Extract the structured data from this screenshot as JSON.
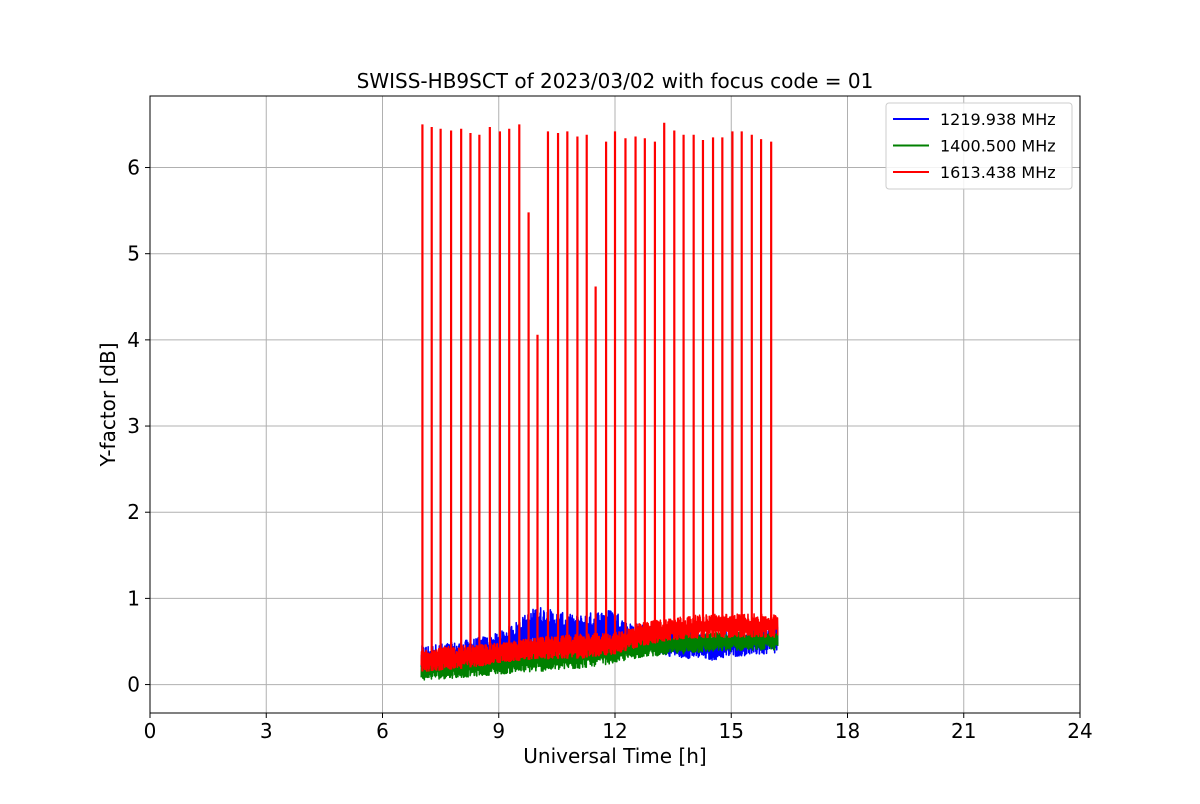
{
  "chart_data": {
    "type": "line",
    "title": "SWISS-HB9SCT of 2023/03/02 with focus code = 01",
    "xlabel": "Universal Time [h]",
    "ylabel": "Y-factor [dB]",
    "xlim": [
      0,
      24
    ],
    "ylim": [
      -0.33,
      6.83
    ],
    "xticks": [
      0,
      3,
      6,
      9,
      12,
      15,
      18,
      21,
      24
    ],
    "yticks": [
      0,
      1,
      2,
      3,
      4,
      5,
      6
    ],
    "grid": true,
    "legend_position": "upper right",
    "series": [
      {
        "name": "1219.938 MHz",
        "color": "#0000ff",
        "kind": "noisy-band",
        "x": [
          7.0,
          8.0,
          9.0,
          9.5,
          10.0,
          10.5,
          11.0,
          11.5,
          12.0,
          12.3,
          12.7,
          13.5,
          14.0,
          14.5,
          15.0,
          15.5,
          16.2
        ],
        "low": [
          0.1,
          0.12,
          0.2,
          0.3,
          0.38,
          0.36,
          0.32,
          0.36,
          0.42,
          0.4,
          0.4,
          0.32,
          0.3,
          0.28,
          0.32,
          0.34,
          0.35
        ],
        "high": [
          0.45,
          0.5,
          0.6,
          0.75,
          0.92,
          0.85,
          0.8,
          0.85,
          0.88,
          0.72,
          0.7,
          0.62,
          0.62,
          0.6,
          0.62,
          0.65,
          0.7
        ]
      },
      {
        "name": "1400.500 MHz",
        "color": "#008000",
        "kind": "noisy-band",
        "x": [
          7.0,
          8.0,
          9.0,
          10.0,
          11.0,
          12.0,
          12.7,
          13.5,
          14.5,
          15.5,
          16.2
        ],
        "low": [
          0.05,
          0.08,
          0.12,
          0.15,
          0.18,
          0.25,
          0.32,
          0.35,
          0.38,
          0.4,
          0.4
        ],
        "high": [
          0.3,
          0.32,
          0.38,
          0.42,
          0.45,
          0.5,
          0.55,
          0.58,
          0.6,
          0.62,
          0.62
        ]
      },
      {
        "name": "1613.438 MHz",
        "color": "#ff0000",
        "kind": "noisy-band-with-spikes",
        "x": [
          7.0,
          8.0,
          9.0,
          10.0,
          11.0,
          12.0,
          12.7,
          13.5,
          14.5,
          15.5,
          16.2
        ],
        "low": [
          0.15,
          0.18,
          0.25,
          0.3,
          0.3,
          0.35,
          0.45,
          0.52,
          0.55,
          0.55,
          0.55
        ],
        "high": [
          0.42,
          0.45,
          0.48,
          0.55,
          0.58,
          0.6,
          0.72,
          0.78,
          0.82,
          0.82,
          0.82
        ],
        "spikes": [
          {
            "t": 7.03,
            "v": 6.5
          },
          {
            "t": 7.27,
            "v": 6.47
          },
          {
            "t": 7.5,
            "v": 6.45
          },
          {
            "t": 7.77,
            "v": 6.43
          },
          {
            "t": 8.03,
            "v": 6.45
          },
          {
            "t": 8.27,
            "v": 6.4
          },
          {
            "t": 8.5,
            "v": 6.38
          },
          {
            "t": 8.77,
            "v": 6.47
          },
          {
            "t": 9.03,
            "v": 6.42
          },
          {
            "t": 9.27,
            "v": 6.45
          },
          {
            "t": 9.53,
            "v": 6.5
          },
          {
            "t": 9.77,
            "v": 5.48
          },
          {
            "t": 10.0,
            "v": 4.06
          },
          {
            "t": 10.27,
            "v": 6.42
          },
          {
            "t": 10.53,
            "v": 6.4
          },
          {
            "t": 10.77,
            "v": 6.42
          },
          {
            "t": 11.03,
            "v": 6.36
          },
          {
            "t": 11.27,
            "v": 6.38
          },
          {
            "t": 11.5,
            "v": 4.62
          },
          {
            "t": 11.77,
            "v": 6.3
          },
          {
            "t": 12.0,
            "v": 6.42
          },
          {
            "t": 12.27,
            "v": 6.34
          },
          {
            "t": 12.53,
            "v": 6.36
          },
          {
            "t": 12.77,
            "v": 6.34
          },
          {
            "t": 13.03,
            "v": 6.3
          },
          {
            "t": 13.27,
            "v": 6.52
          },
          {
            "t": 13.53,
            "v": 6.43
          },
          {
            "t": 13.77,
            "v": 6.38
          },
          {
            "t": 14.03,
            "v": 6.38
          },
          {
            "t": 14.27,
            "v": 6.32
          },
          {
            "t": 14.53,
            "v": 6.35
          },
          {
            "t": 14.77,
            "v": 6.35
          },
          {
            "t": 15.03,
            "v": 6.42
          },
          {
            "t": 15.27,
            "v": 6.42
          },
          {
            "t": 15.53,
            "v": 6.38
          },
          {
            "t": 15.77,
            "v": 6.33
          },
          {
            "t": 16.03,
            "v": 6.3
          }
        ]
      }
    ]
  }
}
